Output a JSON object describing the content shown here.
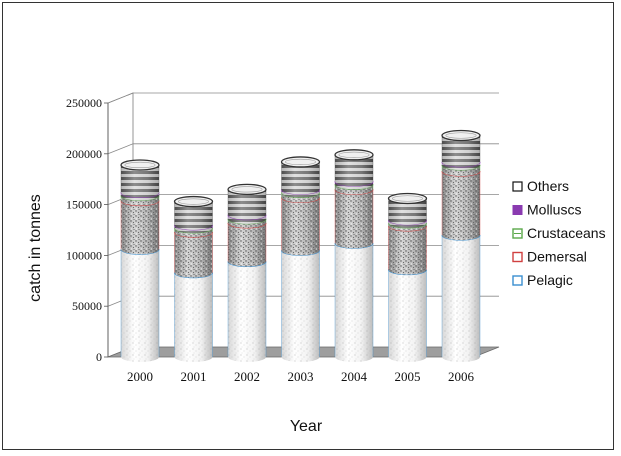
{
  "chart_data": {
    "type": "bar",
    "stacked": true,
    "style": "3d-cylinder",
    "xlabel": "Year",
    "ylabel": "catch in tonnes",
    "categories": [
      "2000",
      "2001",
      "2002",
      "2003",
      "2004",
      "2005",
      "2006"
    ],
    "ylim": [
      0,
      250000
    ],
    "yticks": [
      "250000",
      "200000",
      "150000",
      "100000",
      "50000",
      "0"
    ],
    "grid": true,
    "legend_position": "right",
    "series": [
      {
        "name": "Pelagic",
        "color": "#3a8fd0",
        "values": [
          106000,
          83000,
          94000,
          105000,
          112000,
          86000,
          120000
        ]
      },
      {
        "name": "Demersal",
        "color": "#d04040",
        "values": [
          48000,
          40000,
          38000,
          52000,
          53000,
          43000,
          63000
        ]
      },
      {
        "name": "Crustaceans",
        "color": "#5aa84a",
        "values": [
          5000,
          4000,
          4000,
          5000,
          5000,
          3000,
          6000
        ]
      },
      {
        "name": "Molluscs",
        "color": "#8a3ab0",
        "values": [
          3000,
          3000,
          4000,
          3000,
          3000,
          3000,
          3000
        ]
      },
      {
        "name": "Others",
        "color": "#555555",
        "values": [
          27000,
          23000,
          25000,
          27000,
          26000,
          21000,
          26000
        ]
      }
    ]
  }
}
